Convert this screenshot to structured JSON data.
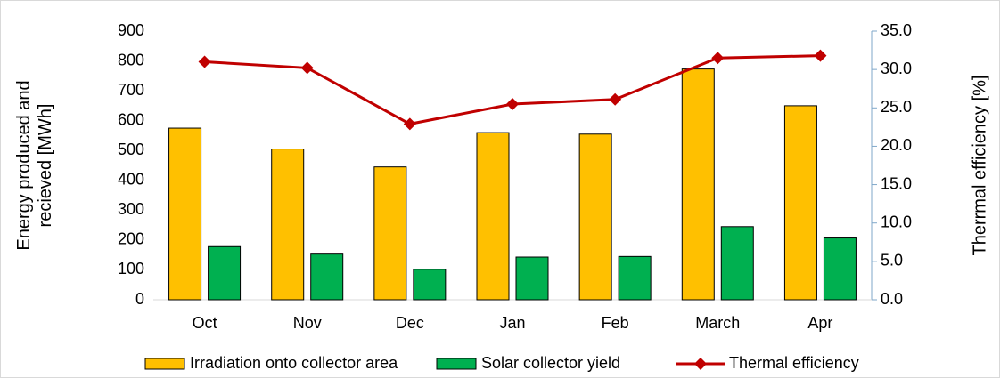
{
  "chart_data": {
    "type": "bar",
    "categories": [
      "Oct",
      "Nov",
      "Dec",
      "Jan",
      "Feb",
      "March",
      "Apr"
    ],
    "series": [
      {
        "name": "Irradiation onto collector area",
        "color": "#ffc000",
        "values": [
          575,
          505,
          445,
          560,
          555,
          773,
          650
        ]
      },
      {
        "name": "Solar collector yield",
        "color": "#00b050",
        "values": [
          178,
          153,
          102,
          143,
          145,
          245,
          207
        ]
      },
      {
        "name": "Thermal efficiency",
        "color": "#c00000",
        "type": "line",
        "axis": "y2",
        "values": [
          31.0,
          30.2,
          22.9,
          25.5,
          26.1,
          31.5,
          31.8
        ]
      }
    ],
    "ylabel": [
      "Energy produced and",
      "recieved [MWh]"
    ],
    "y2label": "Therrmal efficiency [%]",
    "ylim": [
      0,
      900
    ],
    "yticks": [
      0,
      100,
      200,
      300,
      400,
      500,
      600,
      700,
      800,
      900
    ],
    "y2lim": [
      0,
      35
    ],
    "y2ticks": [
      {
        "value": 0,
        "label": "0.0"
      },
      {
        "value": 5,
        "label": "5.0"
      },
      {
        "value": 10,
        "label": "10.0"
      },
      {
        "value": 15,
        "label": "15.0"
      },
      {
        "value": 20,
        "label": "20.0"
      },
      {
        "value": 25,
        "label": "25.0"
      },
      {
        "value": 30,
        "label": "30.0"
      },
      {
        "value": 35,
        "label": "35.0"
      }
    ],
    "legend": "bottom"
  }
}
